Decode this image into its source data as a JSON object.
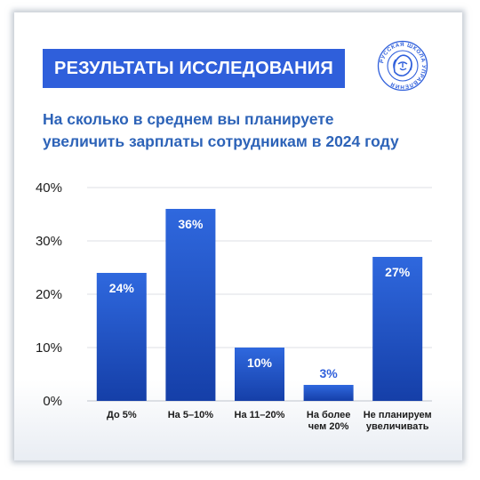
{
  "header": {
    "badge_text": "РЕЗУЛЬТАТЫ ИССЛЕДОВАНИЯ",
    "logo_text": "РУССКАЯ ШКОЛА УПРАВЛЕНИЯ",
    "question_line1": "На сколько в среднем вы планируете",
    "question_line2": "увеличить зарплаты сотрудникам в 2024 году"
  },
  "colors": {
    "accent": "#2f5fdb",
    "bar_top": "#2f68de",
    "bar_bottom": "#153fa8",
    "subtitle": "#2d63b8"
  },
  "chart_data": {
    "type": "bar",
    "categories": [
      [
        "До 5%"
      ],
      [
        "На 5–10%"
      ],
      [
        "На 11–20%"
      ],
      [
        "На более",
        "чем 20%"
      ],
      [
        "Не планируем",
        "увеличивать"
      ]
    ],
    "values": [
      24,
      36,
      10,
      3,
      27
    ],
    "value_labels": [
      "24%",
      "36%",
      "10%",
      "3%",
      "27%"
    ],
    "ylim": [
      0,
      40
    ],
    "yticks": [
      0,
      10,
      20,
      30,
      40
    ],
    "ytick_labels": [
      "0%",
      "10%",
      "20%",
      "30%",
      "40%"
    ],
    "grid": true,
    "legend": false
  }
}
